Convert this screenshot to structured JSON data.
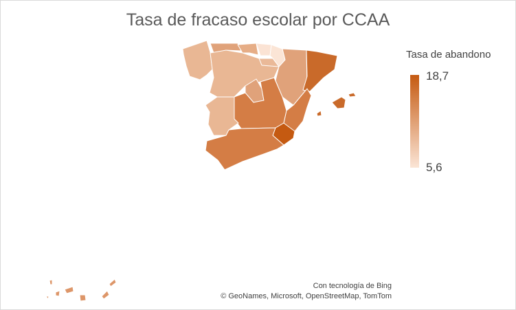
{
  "title": "Tasa de fracaso escolar por CCAA",
  "legend": {
    "title": "Tasa de abandono",
    "max_label": "18,7",
    "min_label": "5,6",
    "max_color": "#c55a11",
    "min_color": "#fbe5d6"
  },
  "credits": {
    "line1": "Con tecnología de Bing",
    "line2": "© GeoNames, Microsoft, OpenStreetMap, TomTom"
  }
}
